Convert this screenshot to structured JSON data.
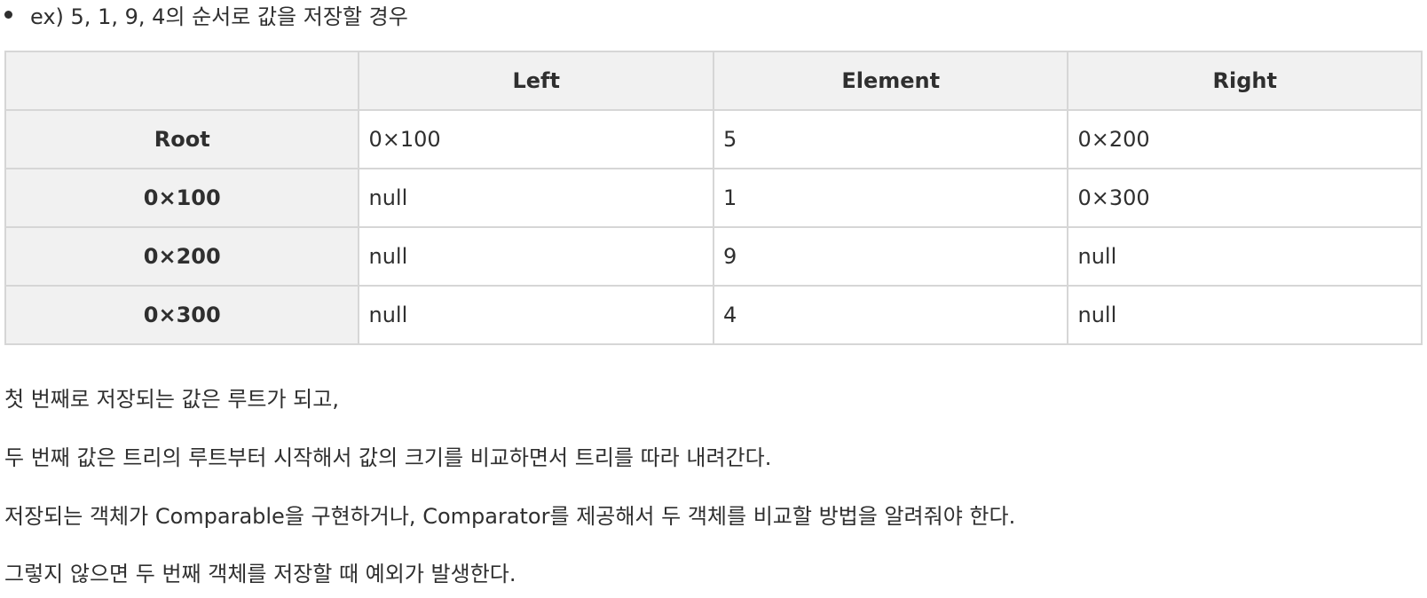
{
  "intro": {
    "text": "ex) 5, 1, 9, 4의 순서로 값을 저장할 경우"
  },
  "table": {
    "columns": [
      "",
      "Left",
      "Element",
      "Right"
    ],
    "rows": [
      {
        "label": "Root",
        "left": "0×100",
        "element": "5",
        "right": "0×200"
      },
      {
        "label": "0×100",
        "left": "null",
        "element": "1",
        "right": "0×300"
      },
      {
        "label": "0×200",
        "left": "null",
        "element": "9",
        "right": "null"
      },
      {
        "label": "0×300",
        "left": "null",
        "element": "4",
        "right": "null"
      }
    ]
  },
  "paragraphs": [
    "첫 번째로 저장되는 값은 루트가 되고,",
    "두 번째 값은 트리의 루트부터 시작해서 값의 크기를 비교하면서 트리를 따라 내려간다.",
    "저장되는 객체가 Comparable을 구현하거나, Comparator를 제공해서 두 객체를 비교할 방법을 알려줘야 한다.",
    "그렇지 않으면 두 번째 객체를 저장할 때 예외가 발생한다."
  ]
}
